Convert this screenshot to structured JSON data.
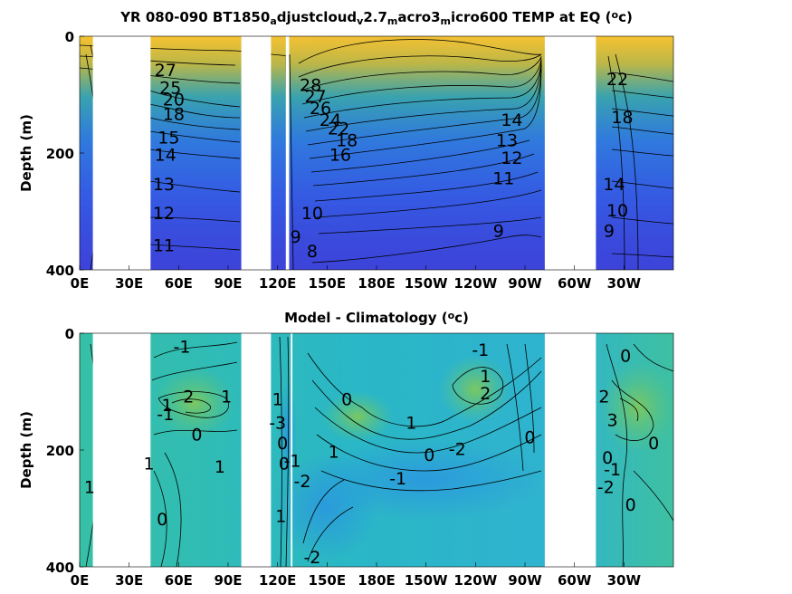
{
  "chart_data": [
    {
      "type": "heatmap",
      "title_parts": [
        {
          "text": "YR 080-090 BT1850",
          "shift": "none"
        },
        {
          "text": "a",
          "shift": "sub"
        },
        {
          "text": "djustcloud",
          "shift": "none"
        },
        {
          "text": "v",
          "shift": "sub"
        },
        {
          "text": "2.7",
          "shift": "none"
        },
        {
          "text": "m",
          "shift": "sub"
        },
        {
          "text": "acro3",
          "shift": "none"
        },
        {
          "text": "m",
          "shift": "sub"
        },
        {
          "text": "icro600 TEMP at EQ (",
          "shift": "none"
        },
        {
          "text": "o",
          "shift": "sup"
        },
        {
          "text": "c)",
          "shift": "none"
        }
      ],
      "ylabel": "Depth (m)",
      "xlim": [
        0,
        360
      ],
      "ylim": [
        400,
        0
      ],
      "x_ticks": [
        {
          "lon": 0,
          "label": "0E"
        },
        {
          "lon": 30,
          "label": "30E"
        },
        {
          "lon": 60,
          "label": "60E"
        },
        {
          "lon": 90,
          "label": "90E"
        },
        {
          "lon": 120,
          "label": "120E"
        },
        {
          "lon": 150,
          "label": "150E"
        },
        {
          "lon": 180,
          "label": "180E"
        },
        {
          "lon": 210,
          "label": "150W"
        },
        {
          "lon": 240,
          "label": "120W"
        },
        {
          "lon": 270,
          "label": "90W"
        },
        {
          "lon": 300,
          "label": "60W"
        },
        {
          "lon": 330,
          "label": "30W"
        }
      ],
      "y_ticks": [
        0,
        200,
        400
      ],
      "land_gaps_lon": [
        [
          8,
          43
        ],
        [
          98,
          116
        ],
        [
          125,
          127
        ],
        [
          282,
          313
        ]
      ],
      "contour_labels": [
        {
          "text": "27",
          "lon": 52,
          "depth": 60
        },
        {
          "text": "25",
          "lon": 55,
          "depth": 90
        },
        {
          "text": "20",
          "lon": 57,
          "depth": 110
        },
        {
          "text": "18",
          "lon": 57,
          "depth": 135
        },
        {
          "text": "15",
          "lon": 54,
          "depth": 175
        },
        {
          "text": "14",
          "lon": 52,
          "depth": 205
        },
        {
          "text": "13",
          "lon": 51,
          "depth": 255
        },
        {
          "text": "12",
          "lon": 51,
          "depth": 305
        },
        {
          "text": "11",
          "lon": 51,
          "depth": 360
        },
        {
          "text": "28",
          "lon": 140,
          "depth": 85
        },
        {
          "text": "27",
          "lon": 143,
          "depth": 105
        },
        {
          "text": "26",
          "lon": 146,
          "depth": 125
        },
        {
          "text": "24",
          "lon": 152,
          "depth": 145
        },
        {
          "text": "22",
          "lon": 157,
          "depth": 160
        },
        {
          "text": "18",
          "lon": 162,
          "depth": 180
        },
        {
          "text": "16",
          "lon": 158,
          "depth": 205
        },
        {
          "text": "10",
          "lon": 141,
          "depth": 305
        },
        {
          "text": "9",
          "lon": 131,
          "depth": 345
        },
        {
          "text": "8",
          "lon": 141,
          "depth": 370
        },
        {
          "text": "14",
          "lon": 262,
          "depth": 145
        },
        {
          "text": "13",
          "lon": 259,
          "depth": 180
        },
        {
          "text": "12",
          "lon": 262,
          "depth": 210
        },
        {
          "text": "11",
          "lon": 257,
          "depth": 245
        },
        {
          "text": "9",
          "lon": 254,
          "depth": 335
        },
        {
          "text": "22",
          "lon": 326,
          "depth": 75
        },
        {
          "text": "18",
          "lon": 329,
          "depth": 140
        },
        {
          "text": "14",
          "lon": 324,
          "depth": 255
        },
        {
          "text": "10",
          "lon": 326,
          "depth": 300
        },
        {
          "text": "9",
          "lon": 321,
          "depth": 335
        }
      ]
    },
    {
      "type": "heatmap",
      "title_parts": [
        {
          "text": "Model - Climatology (",
          "shift": "none"
        },
        {
          "text": "o",
          "shift": "sup"
        },
        {
          "text": "c)",
          "shift": "none"
        }
      ],
      "ylabel": "Depth (m)",
      "xlim": [
        0,
        360
      ],
      "ylim": [
        400,
        0
      ],
      "x_ticks": [
        {
          "lon": 0,
          "label": "0E"
        },
        {
          "lon": 30,
          "label": "30E"
        },
        {
          "lon": 60,
          "label": "60E"
        },
        {
          "lon": 90,
          "label": "90E"
        },
        {
          "lon": 120,
          "label": "120E"
        },
        {
          "lon": 150,
          "label": "150E"
        },
        {
          "lon": 180,
          "label": "180E"
        },
        {
          "lon": 210,
          "label": "150W"
        },
        {
          "lon": 240,
          "label": "120W"
        },
        {
          "lon": 270,
          "label": "90W"
        },
        {
          "lon": 300,
          "label": "60W"
        },
        {
          "lon": 330,
          "label": "30W"
        }
      ],
      "y_ticks": [
        0,
        200,
        400
      ],
      "land_gaps_lon": [
        [
          8,
          43
        ],
        [
          98,
          116
        ],
        [
          128,
          129
        ],
        [
          282,
          313
        ]
      ],
      "contour_labels": [
        {
          "text": "-1",
          "lon": 62,
          "depth": 25
        },
        {
          "text": "1",
          "lon": 89,
          "depth": 110
        },
        {
          "text": "2",
          "lon": 66,
          "depth": 110
        },
        {
          "text": "1",
          "lon": 53,
          "depth": 125
        },
        {
          "text": "-1",
          "lon": 52,
          "depth": 140
        },
        {
          "text": "0",
          "lon": 71,
          "depth": 175
        },
        {
          "text": "1",
          "lon": 42,
          "depth": 225
        },
        {
          "text": "1",
          "lon": 85,
          "depth": 230
        },
        {
          "text": "1",
          "lon": 6,
          "depth": 265
        },
        {
          "text": "0",
          "lon": 50,
          "depth": 320
        },
        {
          "text": "1",
          "lon": 120,
          "depth": 115
        },
        {
          "text": "-3",
          "lon": 120,
          "depth": 155
        },
        {
          "text": "0",
          "lon": 123,
          "depth": 190
        },
        {
          "text": "0",
          "lon": 124,
          "depth": 225
        },
        {
          "text": "1",
          "lon": 122,
          "depth": 315
        },
        {
          "text": "-1",
          "lon": 129,
          "depth": 220
        },
        {
          "text": "-2",
          "lon": 135,
          "depth": 255
        },
        {
          "text": "-2",
          "lon": 141,
          "depth": 385
        },
        {
          "text": "0",
          "lon": 162,
          "depth": 115
        },
        {
          "text": "1",
          "lon": 154,
          "depth": 205
        },
        {
          "text": "1",
          "lon": 201,
          "depth": 155
        },
        {
          "text": "0",
          "lon": 212,
          "depth": 210
        },
        {
          "text": "-1",
          "lon": 193,
          "depth": 250
        },
        {
          "text": "-2",
          "lon": 229,
          "depth": 200
        },
        {
          "text": "-1",
          "lon": 243,
          "depth": 30
        },
        {
          "text": "1",
          "lon": 246,
          "depth": 75
        },
        {
          "text": "2",
          "lon": 246,
          "depth": 105
        },
        {
          "text": "0",
          "lon": 273,
          "depth": 180
        },
        {
          "text": "0",
          "lon": 331,
          "depth": 40
        },
        {
          "text": "2",
          "lon": 318,
          "depth": 110
        },
        {
          "text": "3",
          "lon": 323,
          "depth": 150
        },
        {
          "text": "0",
          "lon": 348,
          "depth": 190
        },
        {
          "text": "0",
          "lon": 320,
          "depth": 215
        },
        {
          "text": "-1",
          "lon": 323,
          "depth": 235
        },
        {
          "text": "-2",
          "lon": 319,
          "depth": 265
        },
        {
          "text": "0",
          "lon": 334,
          "depth": 295
        }
      ]
    }
  ]
}
